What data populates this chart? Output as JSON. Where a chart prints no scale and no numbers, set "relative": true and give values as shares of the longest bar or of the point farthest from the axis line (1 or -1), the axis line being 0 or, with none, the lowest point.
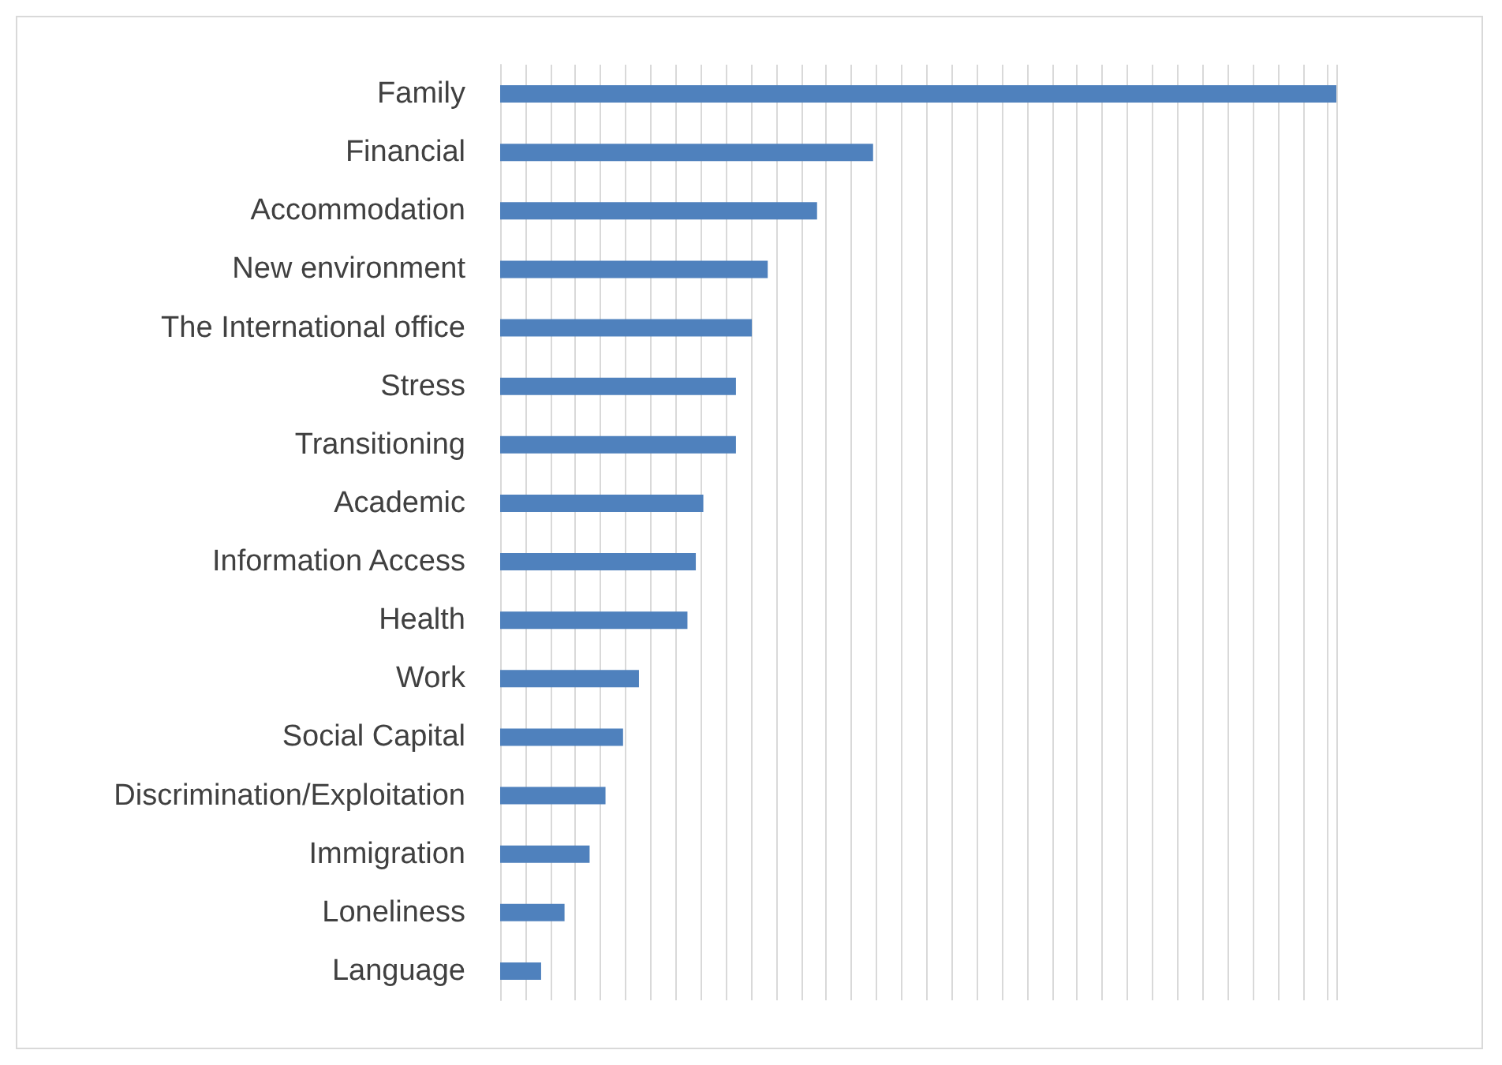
{
  "chart_data": {
    "type": "bar",
    "orientation": "horizontal",
    "relative": true,
    "grid": "x",
    "color": "#4f81bd",
    "categories": [
      "Family",
      "Financial",
      "Accommodation",
      "New environment",
      "The International office",
      "Stress",
      "Transitioning",
      "Academic",
      "Information Access",
      "Health",
      "Work",
      "Social Capital",
      "Discrimination/Exploitation",
      "Immigration",
      "Loneliness",
      "Language"
    ],
    "values": [
      1,
      0.446,
      0.379,
      0.32,
      0.301,
      0.282,
      0.282,
      0.243,
      0.234,
      0.224,
      0.166,
      0.147,
      0.126,
      0.107,
      0.077,
      0.049
    ]
  }
}
